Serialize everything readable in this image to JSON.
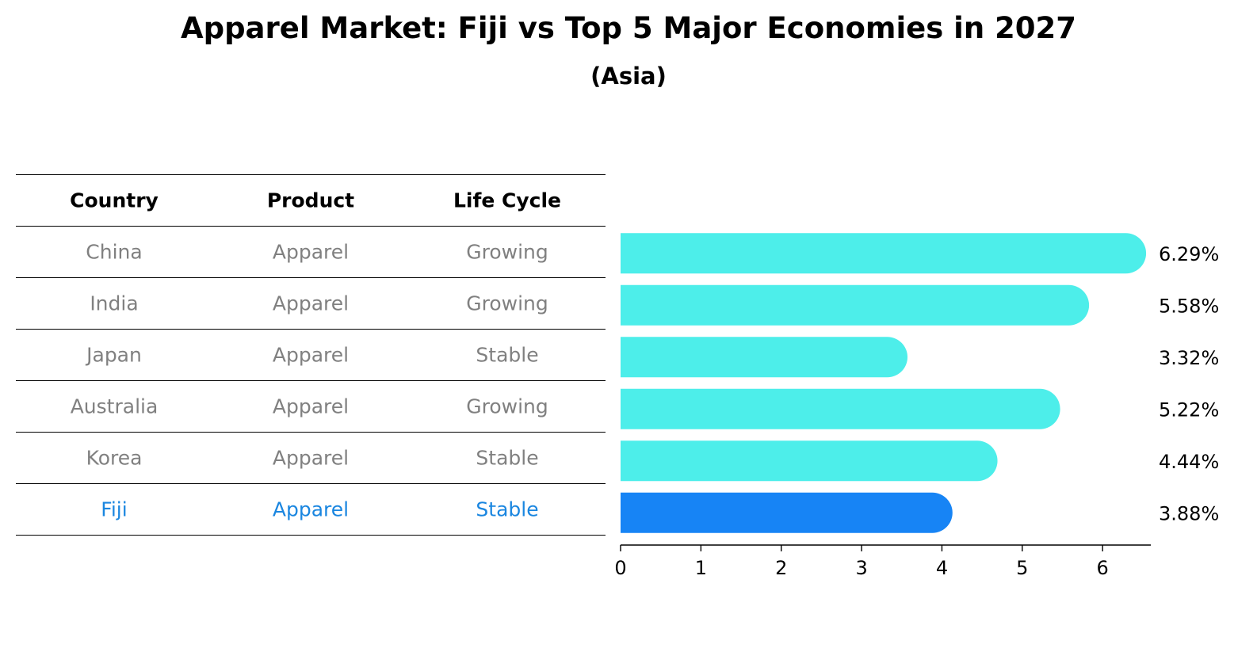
{
  "title": "Apparel Market: Fiji vs Top 5 Major Economies in 2027",
  "subtitle": "(Asia)",
  "table": {
    "headers": [
      "Country",
      "Product",
      "Life Cycle"
    ],
    "rows": [
      [
        "China",
        "Apparel",
        "Growing"
      ],
      [
        "India",
        "Apparel",
        "Growing"
      ],
      [
        "Japan",
        "Apparel",
        "Stable"
      ],
      [
        "Australia",
        "Apparel",
        "Growing"
      ],
      [
        "Korea",
        "Apparel",
        "Stable"
      ],
      [
        "Fiji",
        "Apparel",
        "Stable"
      ]
    ],
    "row_color": "#808080",
    "highlight_color": "#1a86e0",
    "highlight_row": 5
  },
  "chart_data": {
    "type": "bar",
    "orientation": "horizontal",
    "categories": [
      "China",
      "India",
      "Japan",
      "Australia",
      "Korea",
      "Fiji"
    ],
    "values": [
      6.29,
      5.58,
      3.32,
      5.22,
      4.44,
      3.88
    ],
    "value_labels": [
      "6.29%",
      "5.58%",
      "3.32%",
      "5.22%",
      "4.44%",
      "3.88%"
    ],
    "xlim": [
      0,
      6.6
    ],
    "xticks": [
      0,
      1,
      2,
      3,
      4,
      5,
      6
    ],
    "colors": [
      "#4deeea",
      "#4deeea",
      "#4deeea",
      "#4deeea",
      "#4deeea",
      "#1784f5"
    ],
    "grid": false
  }
}
